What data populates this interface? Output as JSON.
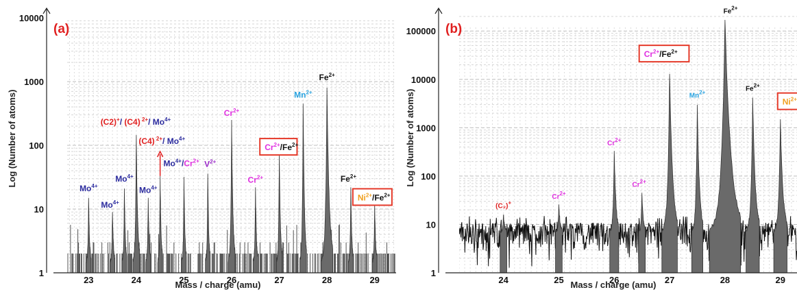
{
  "colors": {
    "mo": "#2b2b9e",
    "cr": "#e030e0",
    "v": "#9a2bc8",
    "mn": "#2aa3e0",
    "fe": "#111111",
    "ni": "#f0a020",
    "c": "#e02020",
    "box": "#e53a2a",
    "fill": "#6a6a6a"
  },
  "chart_data": [
    {
      "type": "bar",
      "panel_label": "(a)",
      "ylabel": "Log (Number of atoms)",
      "xlabel": "Mass / charge (amu)",
      "y_scale": "log",
      "ylim": [
        1,
        10000
      ],
      "xlim": [
        22.55,
        29.45
      ],
      "x_ticks": [
        "23",
        "24",
        "25",
        "26",
        "27",
        "28",
        "29"
      ],
      "y_ticks": [
        "1",
        "10",
        "100",
        "1000",
        "10000"
      ],
      "grid": true,
      "peaks": [
        {
          "x": 23.0,
          "y": 15,
          "w": 0.05
        },
        {
          "x": 23.5,
          "y": 9,
          "w": 0.05
        },
        {
          "x": 23.75,
          "y": 21,
          "w": 0.05
        },
        {
          "x": 24.0,
          "y": 145,
          "w": 0.07
        },
        {
          "x": 24.25,
          "y": 15,
          "w": 0.05
        },
        {
          "x": 24.5,
          "y": 33,
          "w": 0.05
        },
        {
          "x": 25.0,
          "y": 32,
          "w": 0.05
        },
        {
          "x": 25.5,
          "y": 36,
          "w": 0.05
        },
        {
          "x": 26.0,
          "y": 250,
          "w": 0.07
        },
        {
          "x": 26.5,
          "y": 22,
          "w": 0.05
        },
        {
          "x": 27.0,
          "y": 75,
          "w": 0.06
        },
        {
          "x": 27.5,
          "y": 450,
          "w": 0.07
        },
        {
          "x": 28.0,
          "y": 800,
          "w": 0.12
        },
        {
          "x": 28.5,
          "y": 22,
          "w": 0.05
        },
        {
          "x": 29.0,
          "y": 12,
          "w": 0.05
        }
      ],
      "annotations": [
        {
          "text": "Mo",
          "sup": "4+",
          "x": 23.0,
          "y": 19,
          "color": "mo"
        },
        {
          "text": "Mo",
          "sup": "4+",
          "x": 23.45,
          "y": 10.5,
          "color": "mo"
        },
        {
          "text": "Mo",
          "sup": "4+",
          "x": 23.75,
          "y": 27,
          "color": "mo"
        },
        {
          "text": "Mo",
          "sup": "4+",
          "x": 24.25,
          "y": 18,
          "color": "mo"
        },
        {
          "text": "Cr",
          "sup": "2+",
          "x": 26.0,
          "y": 290,
          "color": "cr"
        },
        {
          "text": "Cr",
          "sup": "2+",
          "x": 26.5,
          "y": 26,
          "color": "cr"
        },
        {
          "text": "V",
          "sup": "2+",
          "x": 25.55,
          "y": 46,
          "color": "v"
        },
        {
          "text": "Mn",
          "sup": "2+",
          "x": 27.5,
          "y": 560,
          "color": "mn"
        },
        {
          "text": "Fe",
          "sup": "2+",
          "x": 28.0,
          "y": 1050,
          "color": "fe"
        },
        {
          "text": "Fe",
          "sup": "2+",
          "x": 28.45,
          "y": 27,
          "color": "fe"
        }
      ],
      "compound_labels": [
        {
          "parts": [
            [
              "(C2)",
              "c"
            ],
            [
              "+",
              "c",
              "sup"
            ],
            [
              "/ ",
              "mo"
            ],
            [
              "(C4)",
              "c"
            ],
            [
              " 2+",
              "c",
              "sup"
            ],
            [
              "/ Mo",
              "mo"
            ],
            [
              "4+",
              "mo",
              "sup"
            ]
          ],
          "x": 23.25,
          "y": 210
        },
        {
          "parts": [
            [
              "(C4)",
              "c"
            ],
            [
              " 2+",
              "c",
              "sup"
            ],
            [
              "/ Mo",
              "mo"
            ],
            [
              "4+",
              "mo",
              "sup"
            ]
          ],
          "x": 24.05,
          "y": 105
        },
        {
          "parts": [
            [
              "Mo",
              "mo"
            ],
            [
              "4+",
              "mo",
              "sup"
            ],
            [
              "/",
              "mo"
            ],
            [
              "Cr",
              "cr"
            ],
            [
              "2+",
              "cr",
              "sup"
            ]
          ],
          "x": 24.57,
          "y": 47
        }
      ],
      "boxed_labels": [
        {
          "parts": [
            [
              "Cr",
              "cr"
            ],
            [
              "2+",
              "cr",
              "sup"
            ],
            [
              "/Fe",
              "fe"
            ],
            [
              "2+",
              "fe",
              "sup"
            ]
          ],
          "x": 26.65,
          "y": 86,
          "w": 0.78
        },
        {
          "parts": [
            [
              "Ni",
              "ni"
            ],
            [
              "2+",
              "ni",
              "sup"
            ],
            [
              "/Fe",
              "fe"
            ],
            [
              "2+",
              "fe",
              "sup"
            ]
          ],
          "x": 28.6,
          "y": 14,
          "w": 0.82
        }
      ],
      "arrow": {
        "x": 24.5,
        "y_from": 33,
        "y_to": 80
      }
    },
    {
      "type": "bar",
      "panel_label": "(b)",
      "ylabel": "Log (Number of atoms)",
      "xlabel": "Mass / charge (amu)",
      "y_scale": "log",
      "ylim": [
        1,
        200000
      ],
      "xlim": [
        23.2,
        29.3
      ],
      "x_ticks": [
        "24",
        "25",
        "26",
        "27",
        "28",
        "29"
      ],
      "y_ticks": [
        "1",
        "10",
        "100",
        "1000",
        "10000",
        "100000"
      ],
      "grid": true,
      "background_level": 7,
      "peaks": [
        {
          "x": 24.0,
          "y": 16,
          "w": 0.06
        },
        {
          "x": 25.0,
          "y": 26,
          "w": 0.06
        },
        {
          "x": 26.0,
          "y": 330,
          "w": 0.08
        },
        {
          "x": 26.5,
          "y": 45,
          "w": 0.06
        },
        {
          "x": 27.0,
          "y": 13000,
          "w": 0.14
        },
        {
          "x": 27.5,
          "y": 3000,
          "w": 0.1
        },
        {
          "x": 28.0,
          "y": 170000,
          "w": 0.28
        },
        {
          "x": 28.5,
          "y": 4200,
          "w": 0.12
        },
        {
          "x": 29.0,
          "y": 1500,
          "w": 0.12
        }
      ],
      "annotations": [
        {
          "text": "(C₂)",
          "sup": "+",
          "x": 24.0,
          "y": 22,
          "color": "c"
        },
        {
          "text": "Cr",
          "sup": "2+",
          "x": 25.0,
          "y": 34,
          "color": "cr"
        },
        {
          "text": "Cr",
          "sup": "2+",
          "x": 26.0,
          "y": 430,
          "color": "cr"
        },
        {
          "text": "Cr",
          "sup": "2+",
          "x": 26.45,
          "y": 60,
          "color": "cr"
        },
        {
          "text": "Mn",
          "sup": "2+",
          "x": 27.5,
          "y": 4200,
          "color": "mn"
        },
        {
          "text": "Fe",
          "sup": "2+",
          "x": 28.1,
          "y": 230000,
          "color": "fe"
        },
        {
          "text": "Fe",
          "sup": "2+",
          "x": 28.5,
          "y": 5800,
          "color": "fe"
        }
      ],
      "compound_labels": [],
      "boxed_labels": [
        {
          "parts": [
            [
              "Cr",
              "cr"
            ],
            [
              "2+",
              "cr",
              "sup"
            ],
            [
              "/Fe",
              "fe"
            ],
            [
              "2+",
              "fe",
              "sup"
            ]
          ],
          "x": 26.5,
          "y": 30000,
          "w": 0.9
        },
        {
          "parts": [
            [
              "Ni",
              "ni"
            ],
            [
              "2+",
              "ni",
              "sup"
            ],
            [
              "/Fe",
              "fe"
            ]
          ],
          "x": 29.0,
          "y": 3100,
          "w": 0.6
        }
      ],
      "arrow": null
    }
  ]
}
